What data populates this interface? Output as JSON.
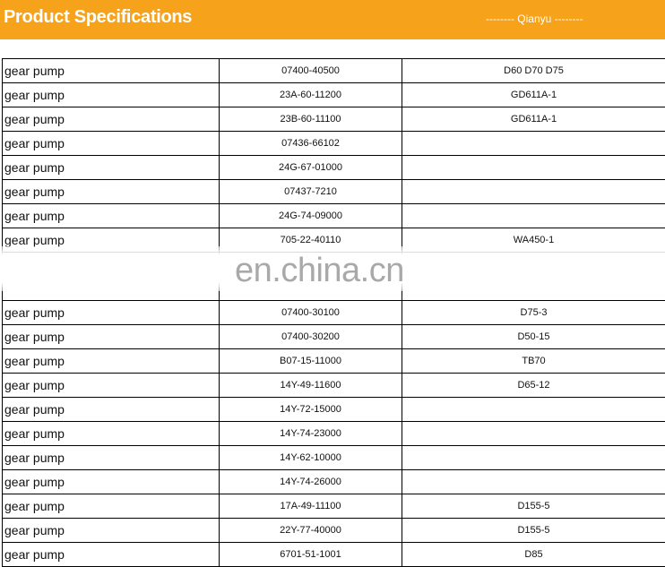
{
  "header": {
    "title": "Product Specifications",
    "brand": "-------- Qianyu --------"
  },
  "table": {
    "rows_before_watermark": [
      [
        "gear pump",
        "07400-40500",
        "D60 D70 D75"
      ],
      [
        "gear pump",
        "23A-60-11200",
        "GD611A-1"
      ],
      [
        "gear pump",
        "23B-60-11100",
        "GD611A-1"
      ],
      [
        "gear pump",
        "07436-66102"
      ],
      [
        "gear pump",
        "24G-67-01000"
      ],
      [
        "gear pump",
        "07437-7210"
      ],
      [
        "gear pump",
        "24G-74-09000"
      ],
      [
        "gear pump",
        "705-22-40110",
        "WA450-1"
      ]
    ],
    "rows_after_watermark": [
      [
        "gear pump",
        "07400-30100",
        "D75-3"
      ],
      [
        "gear pump",
        "07400-30200",
        "D50-15"
      ],
      [
        "gear pump",
        "B07-15-11000",
        "TB70"
      ],
      [
        "gear pump",
        "14Y-49-11600",
        "D65-12"
      ],
      [
        "gear pump",
        "14Y-72-15000"
      ],
      [
        "gear pump",
        "14Y-74-23000"
      ],
      [
        "gear pump",
        "14Y-62-10000"
      ],
      [
        "gear pump",
        "14Y-74-26000"
      ],
      [
        "gear pump",
        "17A-49-11100",
        "D155-5"
      ],
      [
        "gear pump",
        "22Y-77-40000",
        "D155-5"
      ],
      [
        "gear pump",
        "6701-51-1001",
        "D85"
      ]
    ]
  },
  "watermark": "en.china.cn"
}
